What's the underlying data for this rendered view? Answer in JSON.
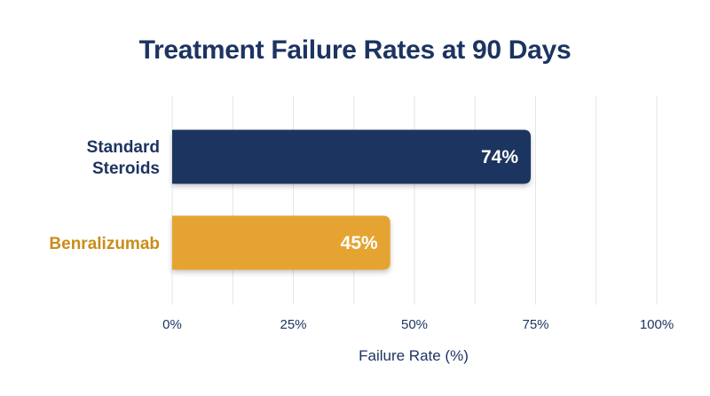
{
  "chart_data": {
    "type": "bar",
    "orientation": "horizontal",
    "title": "Treatment Failure Rates at 90 Days",
    "xlabel": "Failure Rate (%)",
    "ylabel": "",
    "categories": [
      "Standard\nSteroids",
      "Benralizumab"
    ],
    "values": [
      74,
      45
    ],
    "data_labels": [
      "74%",
      "45%"
    ],
    "xlim": [
      0,
      100
    ],
    "xticks": [
      0,
      25,
      50,
      75,
      100
    ],
    "xtick_labels": [
      "0%",
      "25%",
      "50%",
      "75%",
      "100%"
    ],
    "grid": "vertical",
    "legend": "none",
    "colors": [
      "#1d3461",
      "#e5a430"
    ],
    "label_colors": [
      "#1d3461",
      "#c98d1a"
    ]
  }
}
